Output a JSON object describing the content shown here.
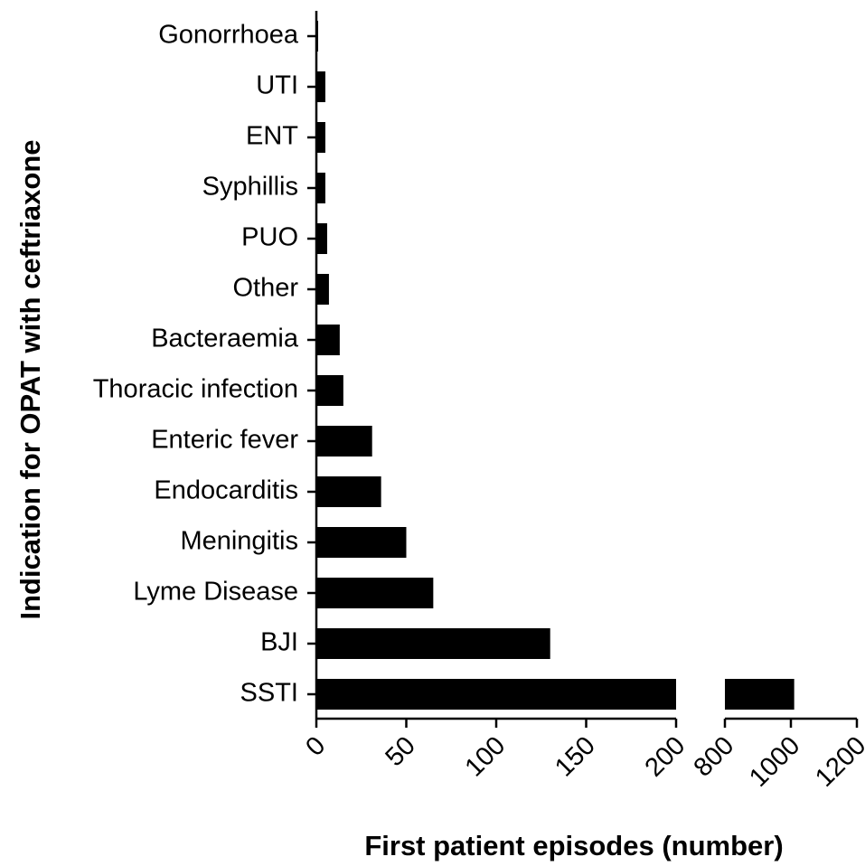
{
  "chart_data": {
    "type": "bar",
    "orientation": "horizontal",
    "x_label": "First patient episodes (number)",
    "y_label": "Indication for OPAT with ceftriaxone",
    "categories": [
      "Gonorrhoea",
      "UTI",
      "ENT",
      "Syphillis",
      "PUO",
      "Other",
      "Bacteraemia",
      "Thoracic infection",
      "Enteric fever",
      "Endocarditis",
      "Meningitis",
      "Lyme Disease",
      "BJI",
      "SSTI"
    ],
    "values": [
      1,
      5,
      5,
      5,
      6,
      7,
      13,
      15,
      31,
      36,
      50,
      65,
      130,
      1010
    ],
    "color": "#000000",
    "xlim": [
      0,
      1200
    ],
    "x_break": [
      200,
      800
    ],
    "xticks": [
      0,
      50,
      100,
      150,
      200,
      800,
      1000,
      1200
    ]
  }
}
